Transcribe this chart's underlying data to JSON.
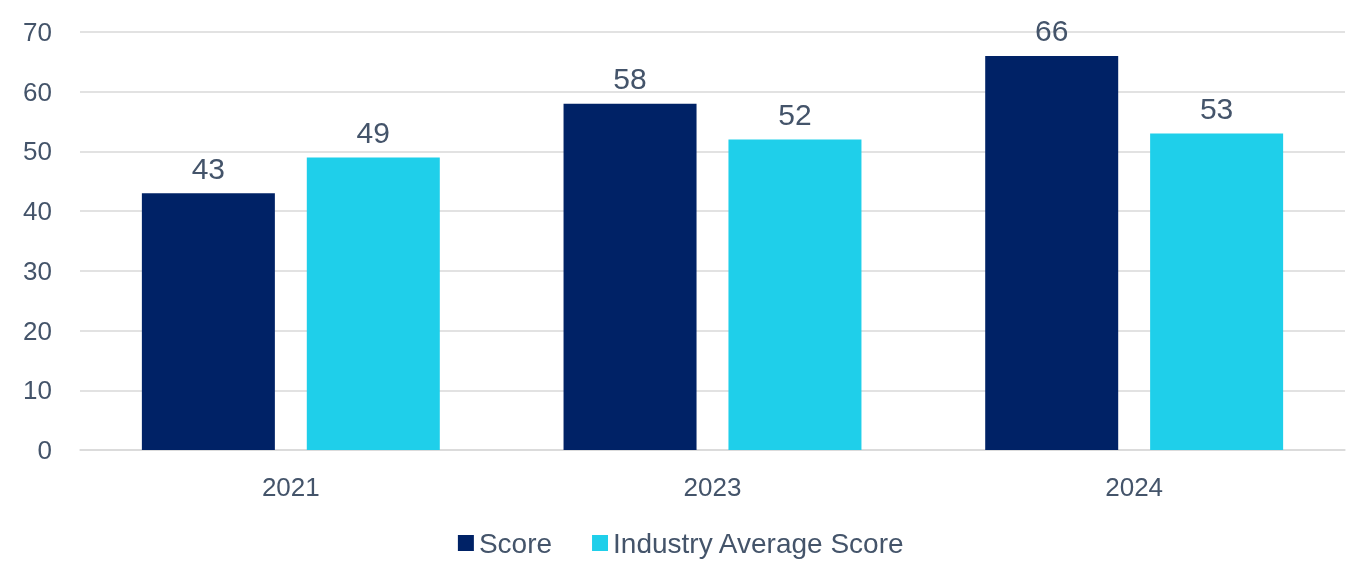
{
  "chart_data": {
    "type": "bar",
    "categories": [
      "2021",
      "2023",
      "2024"
    ],
    "series": [
      {
        "name": "Score",
        "color": "#002266",
        "values": [
          43,
          58,
          66
        ]
      },
      {
        "name": "Industry Average Score",
        "color": "#1fcfea",
        "values": [
          49,
          52,
          53
        ]
      }
    ],
    "ylim": [
      0,
      70
    ],
    "yticks": [
      0,
      10,
      20,
      30,
      40,
      50,
      60,
      70
    ],
    "grid": "y",
    "legend": "bottom",
    "data_labels": true
  }
}
